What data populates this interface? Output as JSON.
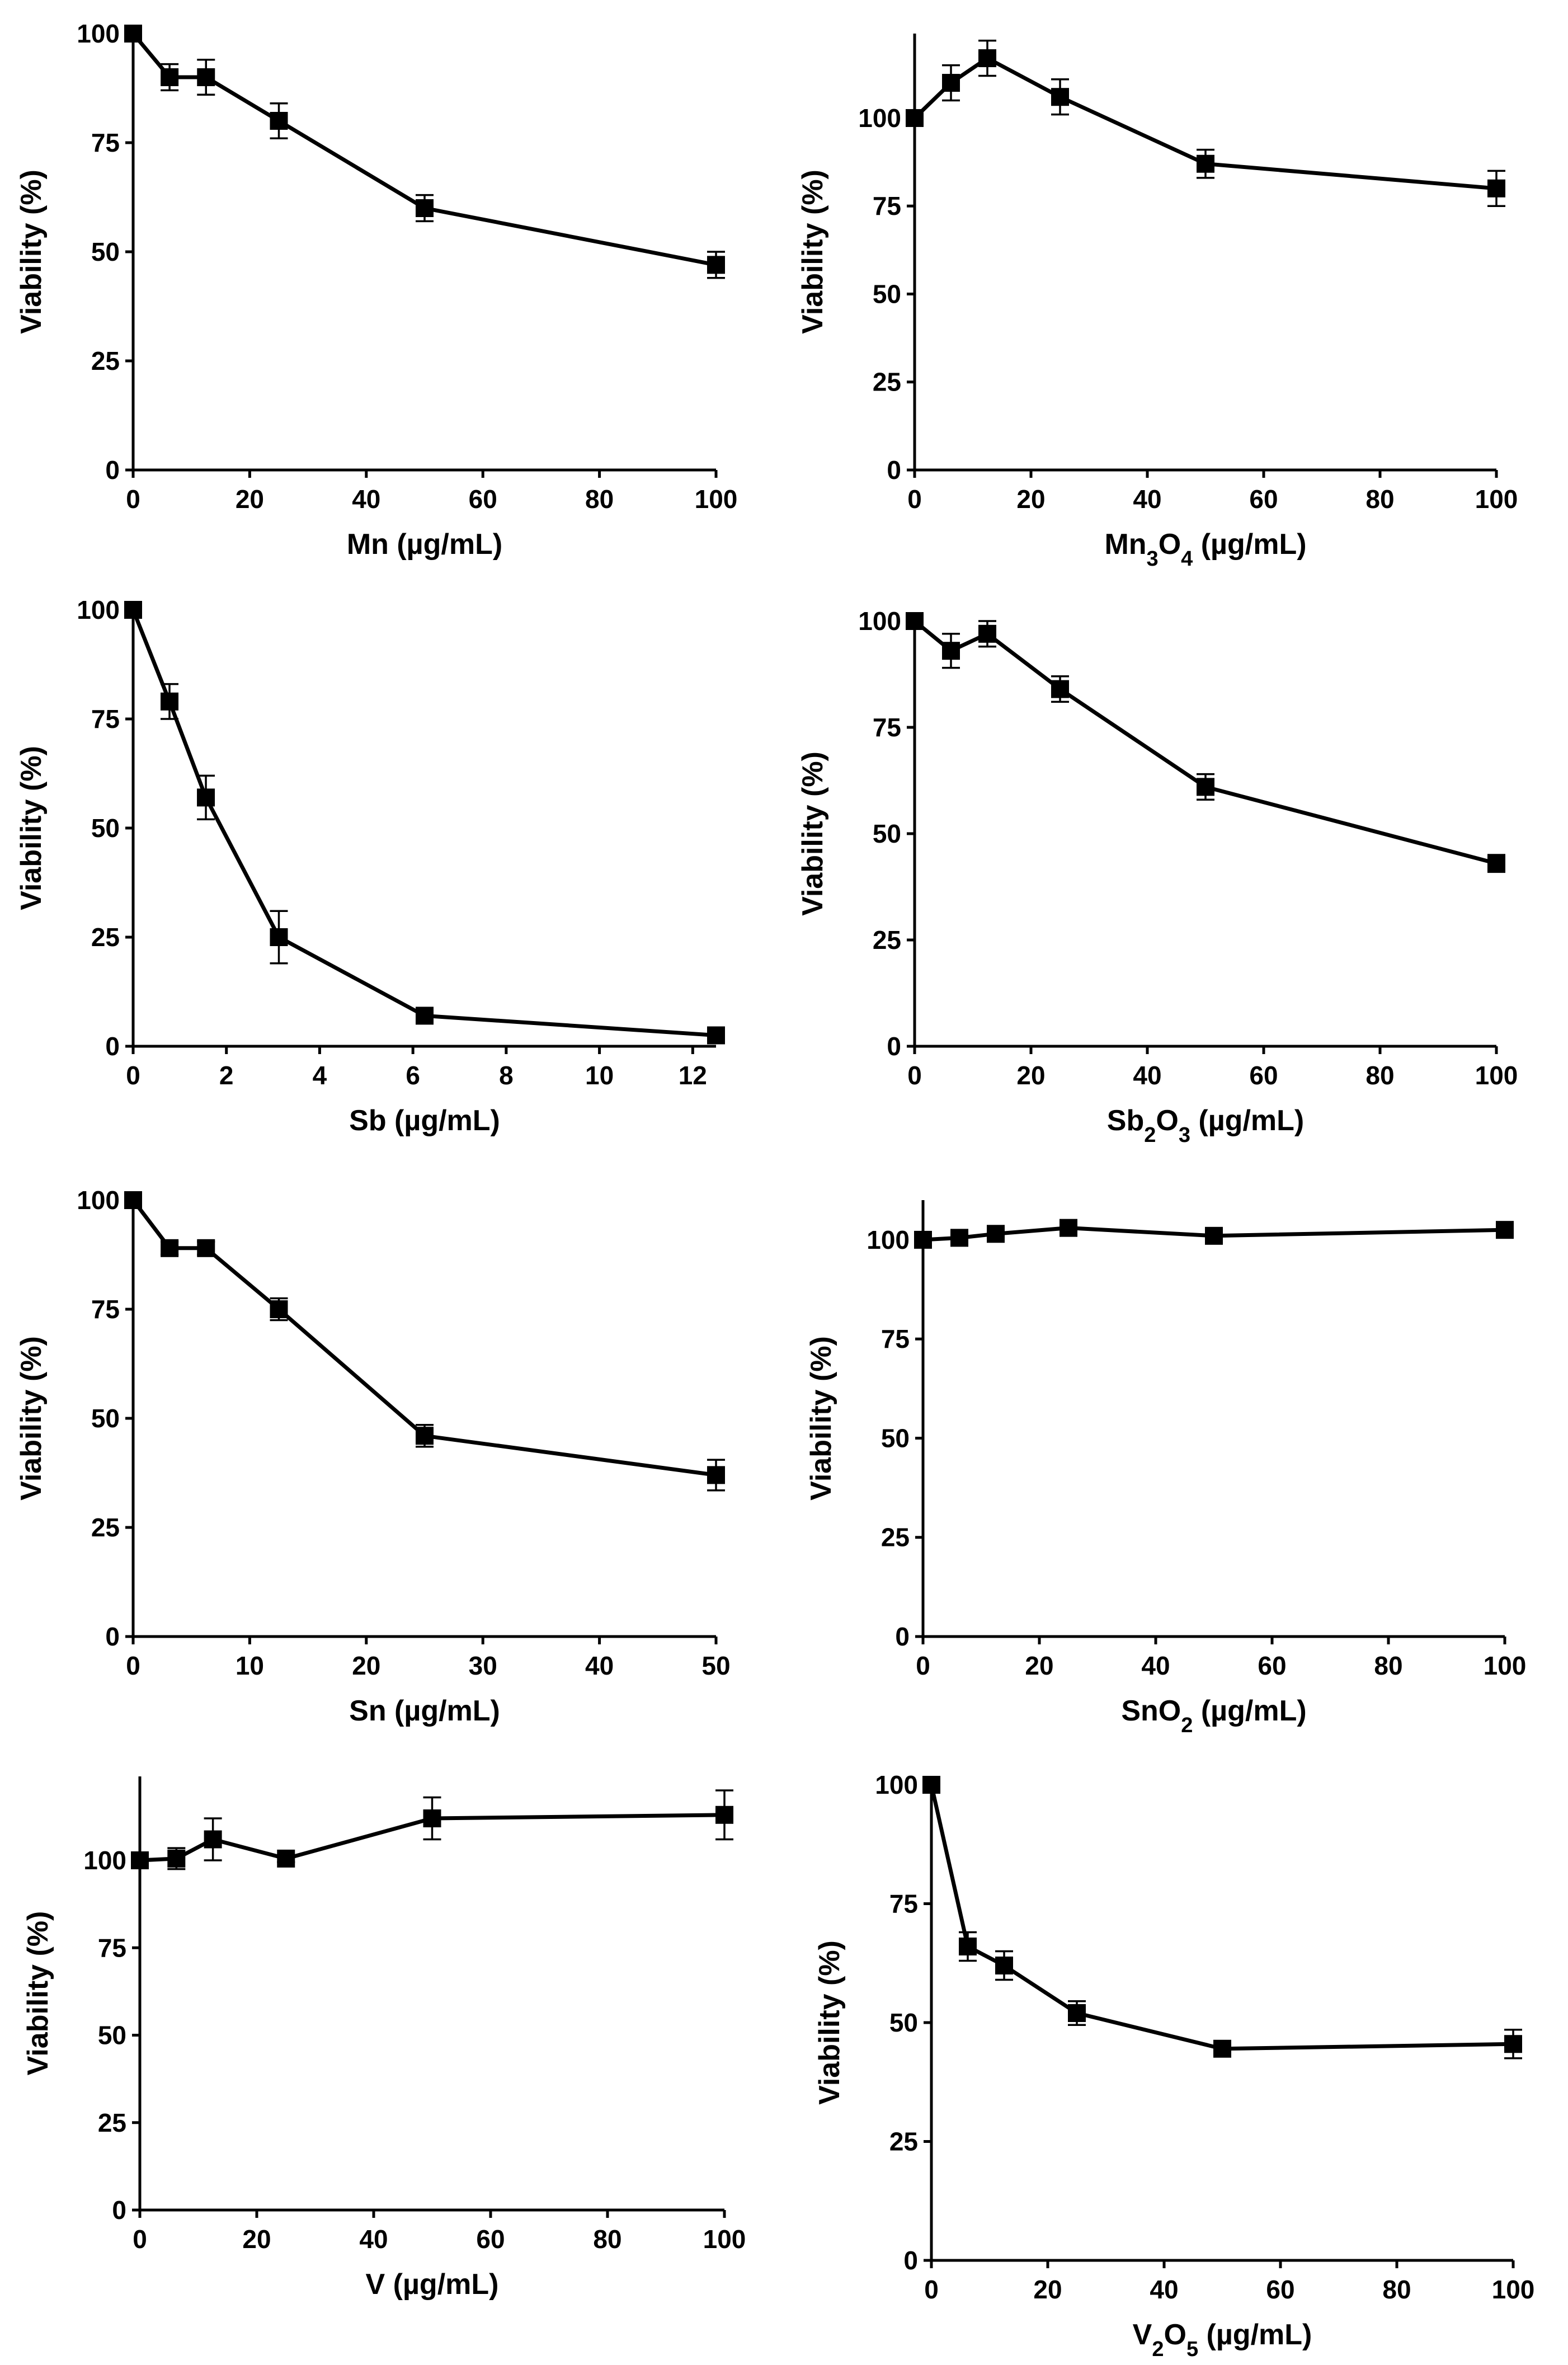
{
  "chart_data": [
    {
      "type": "line",
      "title": "",
      "ylabel": "Viability (%)",
      "xlabel": {
        "base": "Mn",
        "parts": [],
        "unit": " (µg/mL)"
      },
      "xlim": [
        0,
        100
      ],
      "ylim": [
        0,
        100
      ],
      "xticks": [
        0,
        20,
        40,
        60,
        80,
        100
      ],
      "yticks": [
        0,
        25,
        50,
        75,
        100
      ],
      "series": [
        {
          "name": "Mn",
          "x": [
            0,
            6.25,
            12.5,
            25,
            50,
            100
          ],
          "y": [
            100,
            90,
            90,
            80,
            60,
            47
          ],
          "err": [
            0,
            3,
            4,
            4,
            3,
            3
          ]
        }
      ]
    },
    {
      "type": "line",
      "title": "",
      "ylabel": "Viability (%)",
      "xlabel": {
        "base": "Mn",
        "parts": [
          [
            "3",
            "O"
          ],
          [
            "4",
            ""
          ]
        ],
        "unit": " (µg/mL)"
      },
      "xlim": [
        0,
        100
      ],
      "ylim": [
        0,
        124
      ],
      "xticks": [
        0,
        20,
        40,
        60,
        80,
        100
      ],
      "yticks": [
        0,
        25,
        50,
        75,
        100
      ],
      "series": [
        {
          "name": "Mn3O4",
          "x": [
            0,
            6.25,
            12.5,
            25,
            50,
            100
          ],
          "y": [
            100,
            110,
            117,
            106,
            87,
            80
          ],
          "err": [
            0,
            5,
            5,
            5,
            4,
            5
          ]
        }
      ]
    },
    {
      "type": "line",
      "title": "",
      "ylabel": "Viability (%)",
      "xlabel": {
        "base": "Sb",
        "parts": [],
        "unit": " (µg/mL)"
      },
      "xlim": [
        0,
        12.5
      ],
      "ylim": [
        0,
        100
      ],
      "xticks": [
        0,
        2,
        4,
        6,
        8,
        10,
        12
      ],
      "yticks": [
        0,
        25,
        50,
        75,
        100
      ],
      "series": [
        {
          "name": "Sb",
          "x": [
            0,
            0.78,
            1.56,
            3.125,
            6.25,
            12.5
          ],
          "y": [
            100,
            79,
            57,
            25,
            7,
            2.5
          ],
          "err": [
            0,
            4,
            5,
            6,
            1.5,
            1.5
          ]
        }
      ]
    },
    {
      "type": "line",
      "title": "",
      "ylabel": "Viability (%)",
      "xlabel": {
        "base": "Sb",
        "parts": [
          [
            "2",
            "O"
          ],
          [
            "3",
            ""
          ]
        ],
        "unit": " (µg/mL)"
      },
      "xlim": [
        0,
        100
      ],
      "ylim": [
        0,
        100
      ],
      "xticks": [
        0,
        20,
        40,
        60,
        80,
        100
      ],
      "yticks": [
        0,
        25,
        50,
        75,
        100
      ],
      "series": [
        {
          "name": "Sb2O3",
          "x": [
            0,
            6.25,
            12.5,
            25,
            50,
            100
          ],
          "y": [
            100,
            93,
            97,
            84,
            61,
            43
          ],
          "err": [
            0,
            4,
            3,
            3,
            3,
            2
          ]
        }
      ]
    },
    {
      "type": "line",
      "title": "",
      "ylabel": "Viability (%)",
      "xlabel": {
        "base": "Sn",
        "parts": [],
        "unit": " (µg/mL)"
      },
      "xlim": [
        0,
        50
      ],
      "ylim": [
        0,
        100
      ],
      "xticks": [
        0,
        10,
        20,
        30,
        40,
        50
      ],
      "yticks": [
        0,
        25,
        50,
        75,
        100
      ],
      "series": [
        {
          "name": "Sn",
          "x": [
            0,
            3.125,
            6.25,
            12.5,
            25,
            50
          ],
          "y": [
            100,
            89,
            89,
            75,
            46,
            37
          ],
          "err": [
            0,
            1.5,
            1.5,
            2.5,
            2.5,
            3.5
          ]
        }
      ]
    },
    {
      "type": "line",
      "title": "",
      "ylabel": "Viability (%)",
      "xlabel": {
        "base": "SnO",
        "parts": [
          [
            "2",
            ""
          ]
        ],
        "unit": " (µg/mL)"
      },
      "xlim": [
        0,
        100
      ],
      "ylim": [
        0,
        110
      ],
      "xticks": [
        0,
        20,
        40,
        60,
        80,
        100
      ],
      "yticks": [
        0,
        25,
        50,
        75,
        100
      ],
      "series": [
        {
          "name": "SnO2",
          "x": [
            0,
            6.25,
            12.5,
            25,
            50,
            100
          ],
          "y": [
            100,
            100.5,
            101.5,
            103,
            101,
            102.5
          ],
          "err": [
            0,
            1,
            1,
            1,
            1,
            1
          ]
        }
      ]
    },
    {
      "type": "line",
      "title": "",
      "ylabel": "Viability (%)",
      "xlabel": {
        "base": "V",
        "parts": [],
        "unit": " (µg/mL)"
      },
      "xlim": [
        0,
        100
      ],
      "ylim": [
        0,
        124
      ],
      "xticks": [
        0,
        20,
        40,
        60,
        80,
        100
      ],
      "yticks": [
        0,
        25,
        50,
        75,
        100
      ],
      "series": [
        {
          "name": "V",
          "x": [
            0,
            6.25,
            12.5,
            25,
            50,
            100
          ],
          "y": [
            100,
            100.5,
            106,
            100.5,
            112,
            113
          ],
          "err": [
            0,
            3,
            6,
            1,
            6,
            7
          ]
        }
      ]
    },
    {
      "type": "line",
      "title": "",
      "ylabel": "Viability (%)",
      "xlabel": {
        "base": "V",
        "parts": [
          [
            "2",
            "O"
          ],
          [
            "5",
            ""
          ]
        ],
        "unit": " (µg/mL)"
      },
      "xlim": [
        0,
        100
      ],
      "ylim": [
        0,
        100
      ],
      "xticks": [
        0,
        20,
        40,
        60,
        80,
        100
      ],
      "yticks": [
        0,
        25,
        50,
        75,
        100
      ],
      "series": [
        {
          "name": "V2O5",
          "x": [
            0,
            6.25,
            12.5,
            25,
            50,
            100
          ],
          "y": [
            100,
            66,
            62,
            52,
            44.5,
            45.5
          ],
          "err": [
            0,
            3,
            3,
            2.5,
            1.5,
            3
          ]
        }
      ]
    }
  ]
}
